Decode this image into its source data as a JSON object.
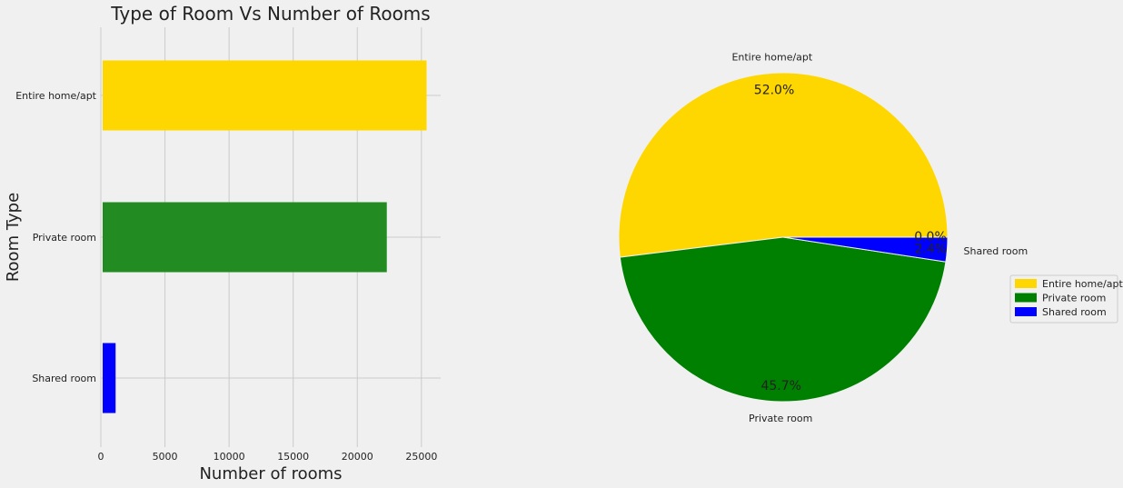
{
  "chart_data": [
    {
      "type": "bar",
      "orientation": "horizontal",
      "title": "Type of Room Vs Number of Rooms",
      "xlabel": "Number of rooms",
      "ylabel": "Room Type",
      "categories": [
        "Entire home/apt",
        "Private room",
        "Shared room"
      ],
      "values": [
        25400,
        22300,
        1150
      ],
      "colors": [
        "#ffd700",
        "#228b22",
        "#0000ff"
      ],
      "xlim": [
        0,
        26500
      ],
      "xticks": [
        0,
        5000,
        10000,
        15000,
        20000,
        25000
      ],
      "xtick_labels": [
        "0",
        "5000",
        "10000",
        "15000",
        "20000",
        "25000"
      ],
      "grid": true
    },
    {
      "type": "pie",
      "labels": [
        "Entire home/apt",
        "Private room",
        "Shared room"
      ],
      "values": [
        52.0,
        45.7,
        2.4
      ],
      "pct_labels": [
        "52.0%",
        "45.7%",
        "2.4%"
      ],
      "extra_pct_label": "0.0%",
      "colors": [
        "#ffd700",
        "#008000",
        "#0000ff"
      ],
      "legend": {
        "entries": [
          "Entire home/apt",
          "Private room",
          "Shared room"
        ],
        "placement": "right"
      }
    }
  ]
}
